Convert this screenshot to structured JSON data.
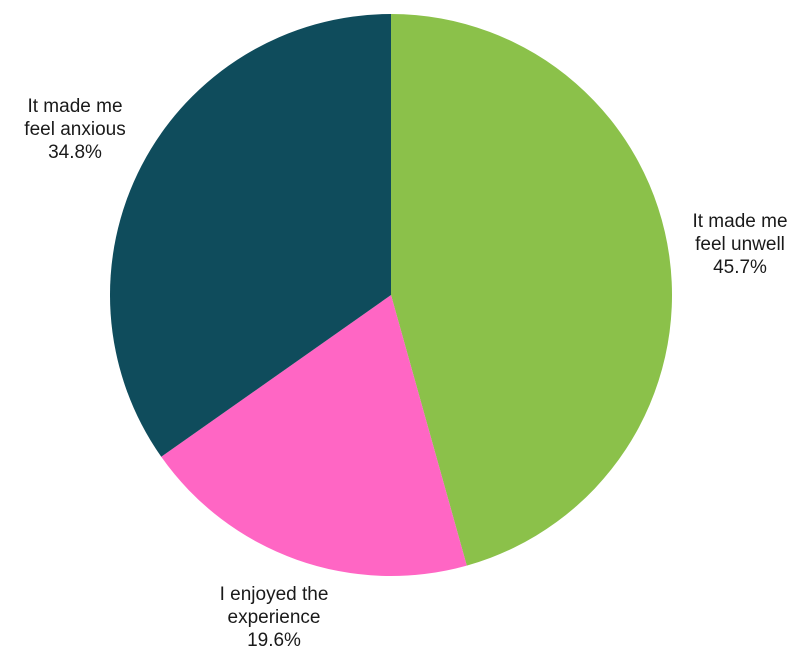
{
  "chart_data": {
    "type": "pie",
    "title": "",
    "slices": [
      {
        "label_lines": [
          "It made me",
          "feel unwell"
        ],
        "percent_label": "45.7%",
        "value": 45.7,
        "color": "#8bc14a"
      },
      {
        "label_lines": [
          "I enjoyed the",
          "experience"
        ],
        "percent_label": "19.6%",
        "value": 19.6,
        "color": "#ff66c4"
      },
      {
        "label_lines": [
          "It made me",
          "feel anxious"
        ],
        "percent_label": "34.8%",
        "value": 34.8,
        "color": "#0f4c5c"
      }
    ],
    "start_angle": "12 o'clock",
    "direction": "clockwise",
    "legend": "none (labels outside slices)"
  }
}
